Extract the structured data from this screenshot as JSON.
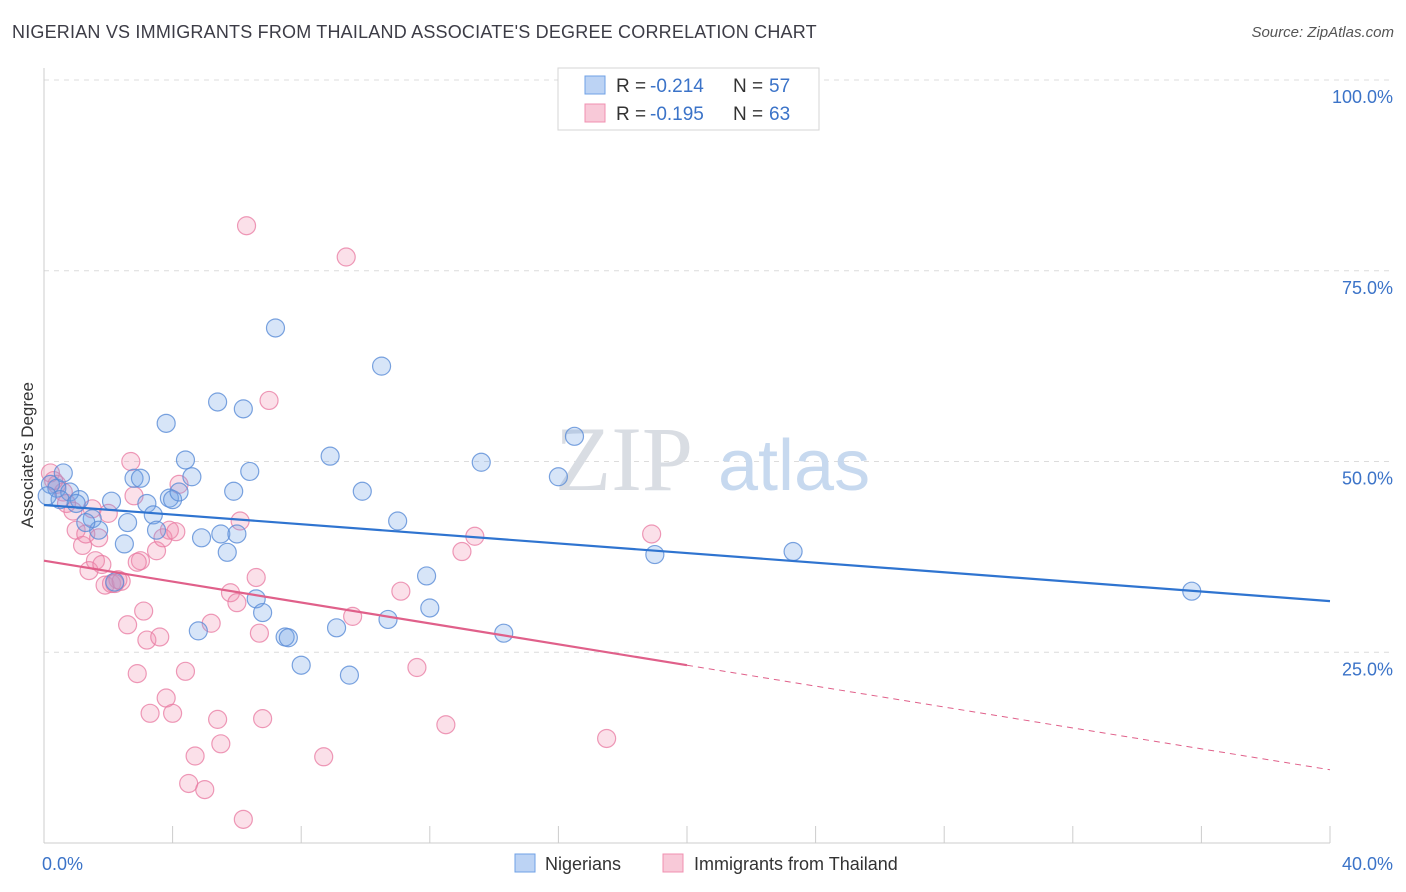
{
  "header": {
    "title": "NIGERIAN VS IMMIGRANTS FROM THAILAND ASSOCIATE'S DEGREE CORRELATION CHART",
    "source": "Source: ZipAtlas.com"
  },
  "watermark": {
    "zip": "ZIP",
    "atlas": "atlas"
  },
  "colors": {
    "blue": "#6fa0e6",
    "blue_line": "#2f74d0",
    "pink": "#f090b0",
    "pink_line": "#e0608a",
    "tick_label": "#3b73c8"
  },
  "chart_data": {
    "type": "scatter",
    "title": "NIGERIAN VS IMMIGRANTS FROM THAILAND ASSOCIATE'S DEGREE CORRELATION CHART",
    "ylabel": "Associate's Degree",
    "xlim": [
      0,
      40
    ],
    "ylim": [
      0,
      100
    ],
    "x_tick_labels": [
      "0.0%",
      "40.0%"
    ],
    "y_tick_labels": [
      "100.0%",
      "75.0%",
      "50.0%",
      "25.0%"
    ],
    "y_ticks": [
      100,
      75,
      50,
      25
    ],
    "grid": true,
    "legend": {
      "position": "top-center",
      "entries": [
        {
          "r_label": "R = ",
          "r_value": "-0.214",
          "n_label": "N = ",
          "n_value": "57"
        },
        {
          "r_label": "R = ",
          "r_value": "-0.195",
          "n_label": "N = ",
          "n_value": "63"
        }
      ]
    },
    "bottom_legend": [
      "Nigerians",
      "Immigrants from Thailand"
    ],
    "series": [
      {
        "name": "Nigerians",
        "color": "#6fa0e6",
        "trend": {
          "x0": 0,
          "y0": 44.3,
          "x1": 40,
          "y1": 31.7
        },
        "points": [
          [
            0.2,
            47.0
          ],
          [
            0.4,
            46.5
          ],
          [
            0.6,
            48.5
          ],
          [
            0.8,
            46.0
          ],
          [
            0.5,
            45.0
          ],
          [
            1.1,
            45.0
          ],
          [
            1.0,
            44.5
          ],
          [
            1.5,
            42.5
          ],
          [
            1.7,
            41.0
          ],
          [
            2.1,
            44.8
          ],
          [
            2.5,
            39.2
          ],
          [
            2.6,
            42.0
          ],
          [
            2.8,
            47.8
          ],
          [
            3.0,
            47.8
          ],
          [
            3.2,
            44.5
          ],
          [
            3.4,
            43.0
          ],
          [
            3.5,
            41.0
          ],
          [
            3.8,
            55.0
          ],
          [
            3.9,
            45.2
          ],
          [
            4.0,
            45.0
          ],
          [
            4.2,
            46.0
          ],
          [
            4.4,
            50.2
          ],
          [
            4.6,
            48.0
          ],
          [
            4.8,
            27.8
          ],
          [
            4.9,
            40.0
          ],
          [
            5.4,
            57.8
          ],
          [
            5.5,
            40.5
          ],
          [
            5.7,
            38.1
          ],
          [
            5.9,
            46.1
          ],
          [
            6.0,
            40.5
          ],
          [
            6.2,
            56.9
          ],
          [
            6.4,
            48.7
          ],
          [
            6.6,
            32.0
          ],
          [
            6.8,
            30.2
          ],
          [
            7.2,
            67.5
          ],
          [
            7.5,
            27.0
          ],
          [
            7.6,
            26.9
          ],
          [
            8.0,
            23.3
          ],
          [
            8.9,
            50.7
          ],
          [
            9.1,
            28.2
          ],
          [
            9.5,
            22.0
          ],
          [
            9.9,
            46.1
          ],
          [
            10.5,
            62.5
          ],
          [
            10.7,
            29.3
          ],
          [
            11.0,
            42.2
          ],
          [
            11.9,
            35.0
          ],
          [
            12.0,
            30.8
          ],
          [
            13.6,
            49.9
          ],
          [
            14.3,
            27.5
          ],
          [
            16.0,
            48.0
          ],
          [
            16.5,
            53.3
          ],
          [
            19.0,
            37.8
          ],
          [
            23.3,
            38.2
          ],
          [
            35.7,
            33.0
          ],
          [
            0.1,
            45.5
          ],
          [
            1.3,
            42.0
          ],
          [
            2.2,
            34.2
          ]
        ]
      },
      {
        "name": "Immigrants from Thailand",
        "color": "#f090b0",
        "trend": {
          "x0": 0,
          "y0": 37.0,
          "x1": 20,
          "y1": 23.3,
          "dash_x1": 40,
          "dash_y1": 9.6
        },
        "points": [
          [
            0.2,
            48.5
          ],
          [
            0.4,
            47.0
          ],
          [
            0.6,
            46.0
          ],
          [
            0.7,
            44.5
          ],
          [
            0.9,
            43.5
          ],
          [
            1.0,
            41.0
          ],
          [
            1.2,
            39.0
          ],
          [
            1.3,
            40.5
          ],
          [
            1.4,
            35.7
          ],
          [
            1.6,
            37.0
          ],
          [
            1.7,
            40.0
          ],
          [
            1.8,
            36.5
          ],
          [
            1.9,
            33.8
          ],
          [
            2.0,
            43.2
          ],
          [
            2.1,
            34.0
          ],
          [
            2.3,
            34.5
          ],
          [
            2.4,
            34.3
          ],
          [
            2.6,
            28.6
          ],
          [
            2.7,
            50.0
          ],
          [
            2.8,
            45.5
          ],
          [
            2.9,
            22.2
          ],
          [
            3.0,
            37.0
          ],
          [
            3.1,
            30.4
          ],
          [
            3.2,
            26.6
          ],
          [
            3.3,
            17.0
          ],
          [
            3.5,
            38.3
          ],
          [
            3.6,
            27.0
          ],
          [
            3.7,
            40.0
          ],
          [
            3.8,
            19.0
          ],
          [
            3.9,
            41.0
          ],
          [
            4.0,
            17.0
          ],
          [
            4.2,
            47.0
          ],
          [
            4.4,
            22.5
          ],
          [
            4.5,
            7.8
          ],
          [
            4.7,
            11.4
          ],
          [
            5.0,
            7.0
          ],
          [
            5.2,
            28.8
          ],
          [
            5.4,
            16.2
          ],
          [
            5.5,
            13.0
          ],
          [
            5.8,
            32.8
          ],
          [
            6.0,
            31.5
          ],
          [
            6.1,
            42.2
          ],
          [
            6.2,
            3.1
          ],
          [
            6.3,
            80.9
          ],
          [
            6.6,
            34.8
          ],
          [
            6.7,
            27.5
          ],
          [
            6.8,
            16.3
          ],
          [
            7.0,
            58.0
          ],
          [
            8.7,
            11.3
          ],
          [
            9.4,
            76.8
          ],
          [
            9.6,
            29.7
          ],
          [
            11.1,
            33.0
          ],
          [
            11.6,
            23.0
          ],
          [
            12.5,
            15.5
          ],
          [
            13.0,
            38.2
          ],
          [
            13.4,
            40.2
          ],
          [
            17.5,
            13.7
          ],
          [
            18.9,
            40.5
          ],
          [
            2.2,
            34.0
          ],
          [
            1.5,
            43.8
          ],
          [
            0.3,
            47.5
          ],
          [
            2.9,
            36.8
          ],
          [
            4.1,
            40.8
          ]
        ]
      }
    ]
  }
}
